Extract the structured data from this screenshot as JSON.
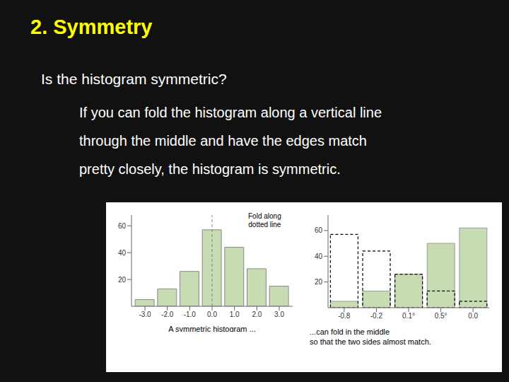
{
  "title": "2. Symmetry",
  "subtitle": "Is the histogram symmetric?",
  "annotations": [
    "If you can fold the histogram along a vertical line",
    "through the middle and have the edges match",
    "pretty closely, the histogram is symmetric."
  ],
  "chart_data": [
    {
      "type": "bar",
      "x": [
        -3,
        -2,
        -1,
        0,
        1,
        2,
        3
      ],
      "values": [
        5,
        13,
        26,
        57,
        44,
        28,
        15
      ],
      "color": "#c8dcb4",
      "xlim": [
        -3.6,
        3.6
      ],
      "xticks": [
        {
          "value": -3,
          "label": "-3.0"
        },
        {
          "value": -2,
          "label": "-2.0"
        },
        {
          "value": -1,
          "label": "-1.0"
        },
        {
          "value": 0,
          "label": "0.0"
        },
        {
          "value": 1,
          "label": "1.0"
        },
        {
          "value": 2,
          "label": "2.0"
        },
        {
          "value": 3,
          "label": "3.0"
        }
      ],
      "ylim": [
        0,
        68
      ],
      "yticks": [
        20,
        40,
        60
      ],
      "x_label": "A symmetric histogram ...",
      "annotations": [
        "Fold along\ndotted line"
      ],
      "reference_lines": [
        {
          "x": 0,
          "line_style": "dashed"
        }
      ],
      "grid": false
    },
    {
      "type": "bar",
      "categories": [
        "-0.8",
        "-0.2",
        "0.1°",
        "0.5°",
        "0.0"
      ],
      "series": [
        {
          "color": "#c8dcb4",
          "values": [
            5,
            13,
            26,
            50,
            62
          ]
        },
        {
          "color": "#000000",
          "line_style": "dashed",
          "values": [
            57,
            44,
            26,
            13,
            5
          ]
        }
      ],
      "ylim": [
        0,
        72
      ],
      "yticks": [
        20,
        40,
        60
      ],
      "annotations": [
        "...can fold in the middle",
        "so that the two sides almost match."
      ],
      "grid": false
    }
  ]
}
